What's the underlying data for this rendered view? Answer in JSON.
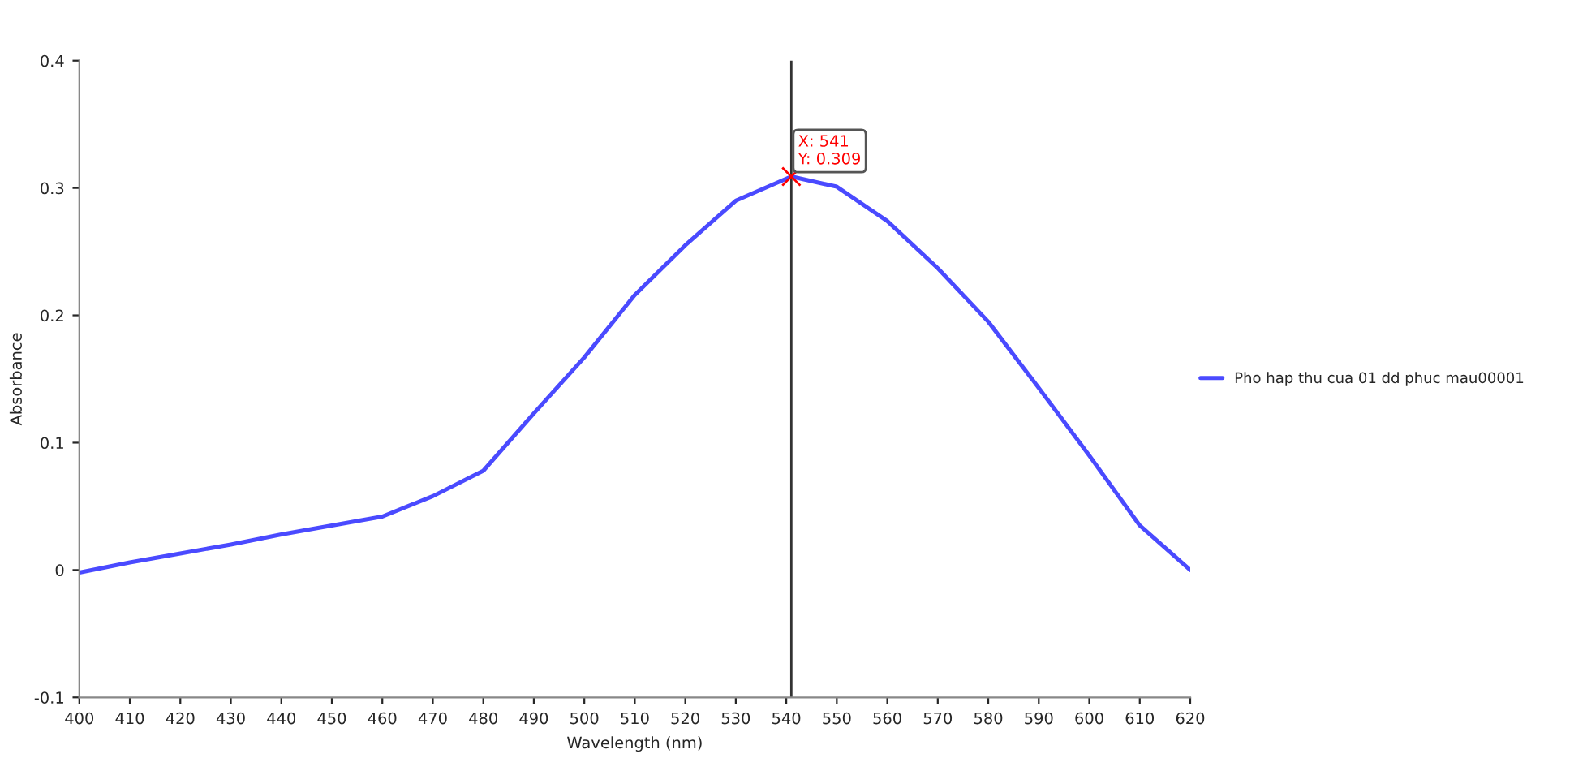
{
  "chart_data": {
    "type": "line",
    "xlabel": "Wavelength (nm)",
    "ylabel": "Absorbance",
    "x": [
      400,
      410,
      420,
      430,
      440,
      450,
      460,
      470,
      480,
      490,
      500,
      510,
      520,
      530,
      541,
      550,
      560,
      570,
      580,
      590,
      600,
      610,
      620
    ],
    "series": [
      {
        "name": "Pho hap thu cua 01 dd phuc mau00001",
        "color": "#4a4aff",
        "values": [
          -0.002,
          0.006,
          0.013,
          0.02,
          0.028,
          0.035,
          0.042,
          0.058,
          0.078,
          0.123,
          0.167,
          0.216,
          0.255,
          0.29,
          0.309,
          0.301,
          0.274,
          0.237,
          0.195,
          0.143,
          0.09,
          0.035,
          0.0
        ]
      }
    ],
    "xlim": [
      400,
      620
    ],
    "xticks": [
      400,
      410,
      420,
      430,
      440,
      450,
      460,
      470,
      480,
      490,
      500,
      510,
      520,
      530,
      540,
      550,
      560,
      570,
      580,
      590,
      600,
      610,
      620
    ],
    "ylim": [
      -0.1,
      0.4
    ],
    "yticks": [
      -0.1,
      0,
      0.1,
      0.2,
      0.3,
      0.4
    ],
    "ref_lines": [
      {
        "axis": "x",
        "value": 541,
        "color": "#333333"
      }
    ],
    "annotations": [
      {
        "text": "X: 541\nY: 0.309",
        "x": 541,
        "y": 0.309
      }
    ],
    "grid": false,
    "legend": "right",
    "marker": "none",
    "line_style": "solid"
  }
}
